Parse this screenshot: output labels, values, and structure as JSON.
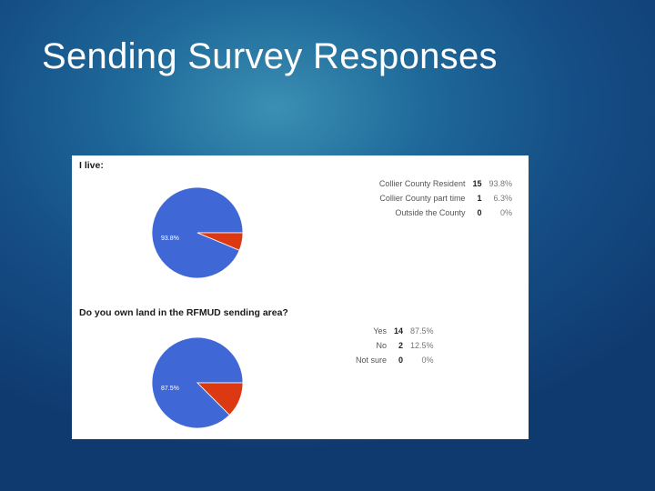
{
  "slide": {
    "title": "Sending Survey Responses"
  },
  "colors": {
    "blue": "#3f68d6",
    "red": "#dc3912"
  },
  "chart_data": [
    {
      "type": "pie",
      "title": "I live:",
      "slices": [
        {
          "label": "Collier County Resident",
          "count": "15",
          "percent": "93.8%",
          "value": 93.8,
          "color": "#3f68d6",
          "slice_label": "93.8%"
        },
        {
          "label": "Collier County part time",
          "count": "1",
          "percent": "6.3%",
          "value": 6.3,
          "color": "#dc3912"
        },
        {
          "label": "Outside the County",
          "count": "0",
          "percent": "0%",
          "value": 0,
          "color": "#ff9900"
        }
      ]
    },
    {
      "type": "pie",
      "title": "Do you own land in the RFMUD sending area?",
      "slices": [
        {
          "label": "Yes",
          "count": "14",
          "percent": "87.5%",
          "value": 87.5,
          "color": "#3f68d6",
          "slice_label": "87.5%"
        },
        {
          "label": "No",
          "count": "2",
          "percent": "12.5%",
          "value": 12.5,
          "color": "#dc3912"
        },
        {
          "label": "Not sure",
          "count": "0",
          "percent": "0%",
          "value": 0,
          "color": "#ff9900"
        }
      ]
    }
  ]
}
